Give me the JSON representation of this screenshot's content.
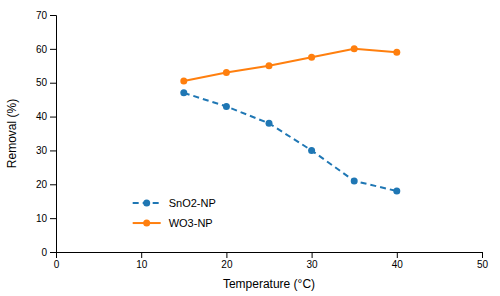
{
  "chart_data": {
    "type": "line",
    "x_label": "Temperature (°C)",
    "y_label": "Removal (%)",
    "x": [
      15,
      20,
      25,
      30,
      35,
      40
    ],
    "xlim": [
      0,
      50
    ],
    "ylim": [
      0,
      70
    ],
    "xticks": [
      0,
      10,
      20,
      30,
      40,
      50
    ],
    "yticks": [
      0,
      10,
      20,
      30,
      40,
      50,
      60,
      70
    ],
    "legend": "lower left",
    "series": [
      {
        "name": "SnO2-NP",
        "values": [
          47,
          43,
          38,
          30,
          21,
          18
        ],
        "line_style": "dashed",
        "marker": "circle"
      },
      {
        "name": "WO3-NP",
        "values": [
          50.5,
          53,
          55,
          57.5,
          60,
          59
        ],
        "line_style": "solid",
        "marker": "circle"
      }
    ]
  }
}
